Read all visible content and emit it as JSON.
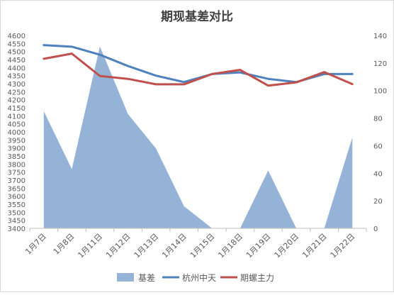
{
  "chart_data": {
    "type": "area+line",
    "title": "期现基差对比",
    "categories": [
      "1月7日",
      "1月8日",
      "1月11日",
      "1月12日",
      "1月13日",
      "1月14日",
      "1月15日",
      "1月18日",
      "1月19日",
      "1月20日",
      "1月21日",
      "1月22日"
    ],
    "left_axis": {
      "min": 3400,
      "max": 4600,
      "step": 50
    },
    "right_axis": {
      "min": 0,
      "max": 140,
      "step": 20
    },
    "grid": false,
    "legend_position": "bottom",
    "series": [
      {
        "name": "基差",
        "type": "area",
        "axis": "right",
        "color": "#95b3d7",
        "values": [
          85,
          43,
          132,
          83,
          58,
          16,
          0,
          0,
          42,
          0,
          0,
          66
        ]
      },
      {
        "name": "杭州中天",
        "type": "line",
        "axis": "left",
        "color": "#4f81bd",
        "values": [
          4540,
          4530,
          4480,
          4410,
          4350,
          4310,
          4360,
          4370,
          4330,
          4310,
          4360,
          4360
        ]
      },
      {
        "name": "期螺主力",
        "type": "line",
        "axis": "left",
        "color": "#c0504d",
        "values": [
          4455,
          4487,
          4348,
          4330,
          4296,
          4296,
          4360,
          4386,
          4288,
          4308,
          4372,
          4297
        ]
      }
    ]
  }
}
